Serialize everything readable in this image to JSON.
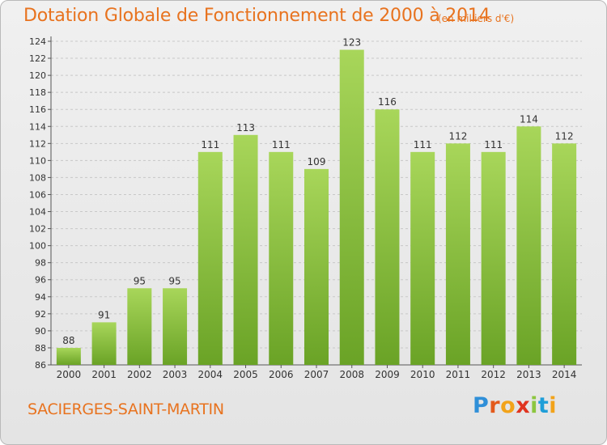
{
  "title": "Dotation Globale de Fonctionnement de 2000 à 2014",
  "subtitle": "(en milliers d'€)",
  "commune": "SACIERGES-SAINT-MARTIN",
  "logo": {
    "letters": [
      "P",
      "r",
      "o",
      "x",
      "i",
      "t",
      "i"
    ],
    "colors": [
      "#2f8fd8",
      "#e35a1c",
      "#f2a31a",
      "#e0341f",
      "#8cc63f",
      "#1f9ed8",
      "#f2a31a"
    ]
  },
  "colors": {
    "accent": "#e8731f",
    "bar_light": "#a8d65a",
    "bar_dark": "#6aa326",
    "grid": "#c8c8c8"
  },
  "chart_data": {
    "type": "bar",
    "categories": [
      "2000",
      "2001",
      "2002",
      "2003",
      "2004",
      "2005",
      "2006",
      "2007",
      "2008",
      "2009",
      "2010",
      "2011",
      "2012",
      "2013",
      "2014"
    ],
    "values": [
      88,
      91,
      95,
      95,
      111,
      113,
      111,
      109,
      123,
      116,
      111,
      112,
      111,
      114,
      112
    ],
    "ylim": [
      86,
      124
    ],
    "ytick_step": 2,
    "grid": true,
    "xlabel": "",
    "ylabel": ""
  }
}
